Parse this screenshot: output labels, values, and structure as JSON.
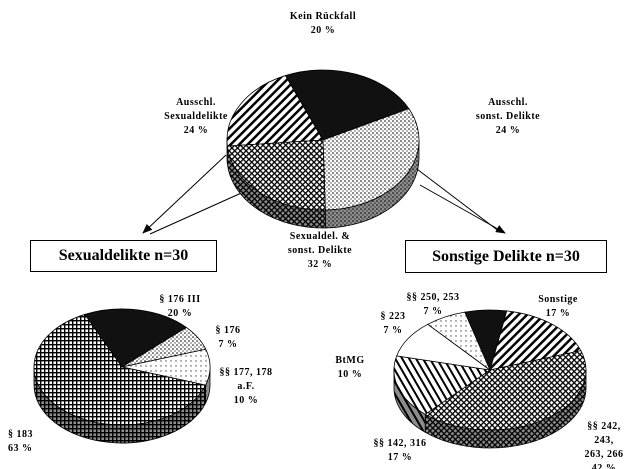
{
  "chart_data": [
    {
      "type": "pie",
      "categories": [
        "Kein Rückfall",
        "Ausschl.\nsonst. Delikte",
        "Sexualdel. &\nsonst. Delikte",
        "Ausschl.\nSexualdelikte"
      ],
      "values": [
        20,
        24,
        32,
        24
      ],
      "value_labels": [
        "20 %",
        "24 %",
        "32 %",
        "24 %"
      ],
      "colors": [
        "hatch",
        "black",
        "dots",
        "cross"
      ]
    },
    {
      "type": "pie",
      "title": "Sexualdelikte n=30",
      "categories": [
        "§ 176 III",
        "§ 176",
        "§§ 177, 178\na.F.",
        "§ 183"
      ],
      "values": [
        20,
        7,
        10,
        63
      ],
      "value_labels": [
        "20 %",
        "7 %",
        "10 %",
        "63 %"
      ],
      "colors": [
        "black",
        "dots",
        "lightdots",
        "grid"
      ]
    },
    {
      "type": "pie",
      "title": "Sonstige Delikte n=30",
      "categories": [
        "Sonstige",
        "§§ 242, 243,\n263, 266",
        "§§ 142, 316",
        "BtMG",
        "§ 223",
        "§§ 250, 253"
      ],
      "values": [
        17,
        42,
        17,
        10,
        7,
        7
      ],
      "value_labels": [
        "17 %",
        "42 %",
        "17 %",
        "10 %",
        "7 %",
        "7 %"
      ],
      "colors": [
        "hatch",
        "cross",
        "hatch2",
        "white",
        "lightdots",
        "black"
      ]
    }
  ]
}
